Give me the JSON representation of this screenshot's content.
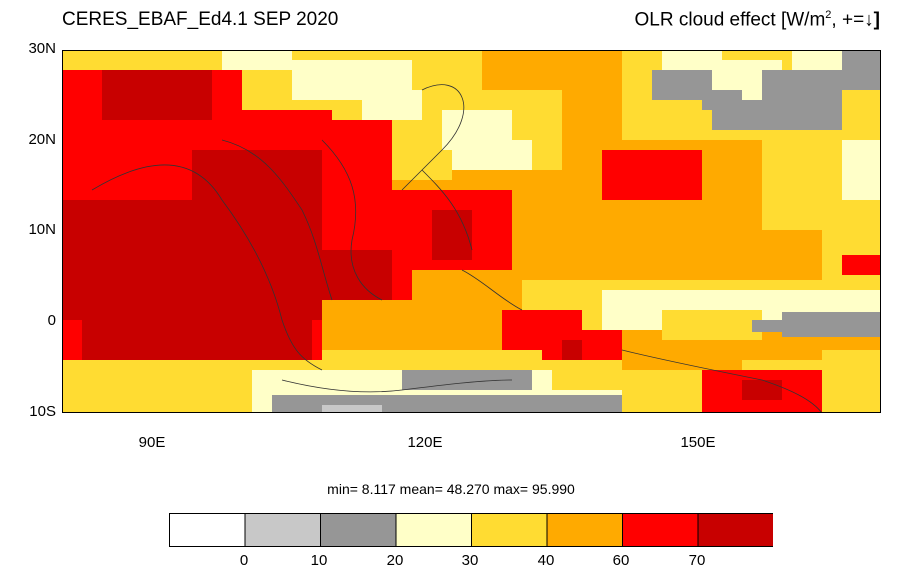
{
  "header": {
    "title_left": "CERES_EBAF_Ed4.1 SEP 2020",
    "title_right_prefix": "OLR cloud effect [W/m",
    "title_right_sup": "2",
    "title_right_suffix": ", +=",
    "title_right_arrow": "↓",
    "title_right_close": "]"
  },
  "axes": {
    "lat_labels": [
      "30N",
      "20N",
      "10N",
      "0",
      "10S"
    ],
    "lon_labels": [
      "90E",
      "120E",
      "150E"
    ]
  },
  "stats": {
    "text": "min=  8.117  mean=  48.270  max=  95.990"
  },
  "colorbar": {
    "labels": [
      "0",
      "10",
      "20",
      "30",
      "40",
      "60",
      "70"
    ],
    "colors": [
      "#ffffff",
      "#c8c8c8",
      "#969696",
      "#ffffc8",
      "#ffdc32",
      "#ffaa00",
      "#ff0000",
      "#c80000"
    ]
  }
}
